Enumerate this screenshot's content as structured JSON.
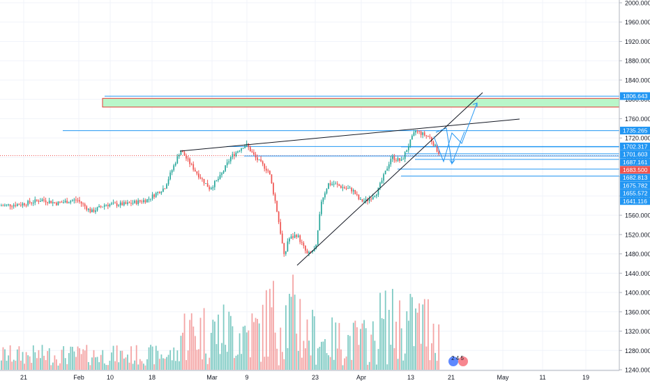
{
  "chart_data": {
    "type": "candlestick",
    "title": "",
    "xlabel": "",
    "ylabel": "",
    "ylim": [
      1240,
      2000
    ],
    "grid": true,
    "legend": "none",
    "y_ticks": [
      2000,
      1960,
      1920,
      1880,
      1840,
      1800,
      1760,
      1720,
      1680,
      1640,
      1600,
      1560,
      1520,
      1480,
      1440,
      1400,
      1360,
      1320,
      1280,
      1240
    ],
    "y_tick_labels": [
      "2000.000",
      "1960.000",
      "1920.000",
      "1880.000",
      "1840.000",
      "1800.000",
      "1760.000",
      "1720.000",
      "1680.000",
      "1640.000",
      "1600.000",
      "1560.000",
      "1520.000",
      "1480.000",
      "1440.000",
      "1400.000",
      "1360.000",
      "1320.000",
      "1280.000",
      "1240.000"
    ],
    "x_ticks": [
      "21",
      "Feb",
      "10",
      "18",
      "Mar",
      "9",
      "23",
      "Apr",
      "13",
      "21",
      "May",
      "11",
      "19"
    ],
    "price_labels": [
      {
        "value": 1806.643,
        "label": "1806.643",
        "color": "#2196f3",
        "kind": "line"
      },
      {
        "value": 1735.265,
        "label": "1735.265",
        "color": "#2196f3",
        "kind": "line"
      },
      {
        "value": 1702.317,
        "label": "1702.317",
        "color": "#2196f3",
        "kind": "line"
      },
      {
        "value": 1701.603,
        "label": "1701.603",
        "color": "#2196f3",
        "kind": "line"
      },
      {
        "value": 1687.161,
        "label": "1687.161",
        "color": "#2196f3",
        "kind": "line"
      },
      {
        "value": 1683.5,
        "label": "1683.500",
        "color": "#ef5350",
        "kind": "last"
      },
      {
        "value": 1682.813,
        "label": "1682.813",
        "color": "#2196f3",
        "kind": "line"
      },
      {
        "value": 1675.782,
        "label": "1675.782",
        "color": "#2196f3",
        "kind": "line"
      },
      {
        "value": 1655.572,
        "label": "1655.572",
        "color": "#2196f3",
        "kind": "line"
      },
      {
        "value": 1641.116,
        "label": "1641.116",
        "color": "#2196f3",
        "kind": "line"
      }
    ],
    "zone": {
      "from": 1784,
      "to": 1802,
      "color": "#b9f6ca",
      "border": "#e53935"
    },
    "trendlines": [
      {
        "name": "upper-resistance",
        "from": [
          0.0,
          1717
        ],
        "to": [
          1.0,
          1762
        ]
      },
      {
        "name": "lower-support",
        "from": [
          0.0,
          1447
        ],
        "to": [
          1.0,
          1812
        ]
      }
    ],
    "last_price": 1683.5,
    "watermark_digits": "2 4 5",
    "colors": {
      "up": "#26a69a",
      "down": "#ef5350",
      "up_volume": "#80cbc4",
      "down_volume": "#f4a4a4",
      "line": "#2196f3",
      "grid": "#f0f3fa"
    }
  }
}
